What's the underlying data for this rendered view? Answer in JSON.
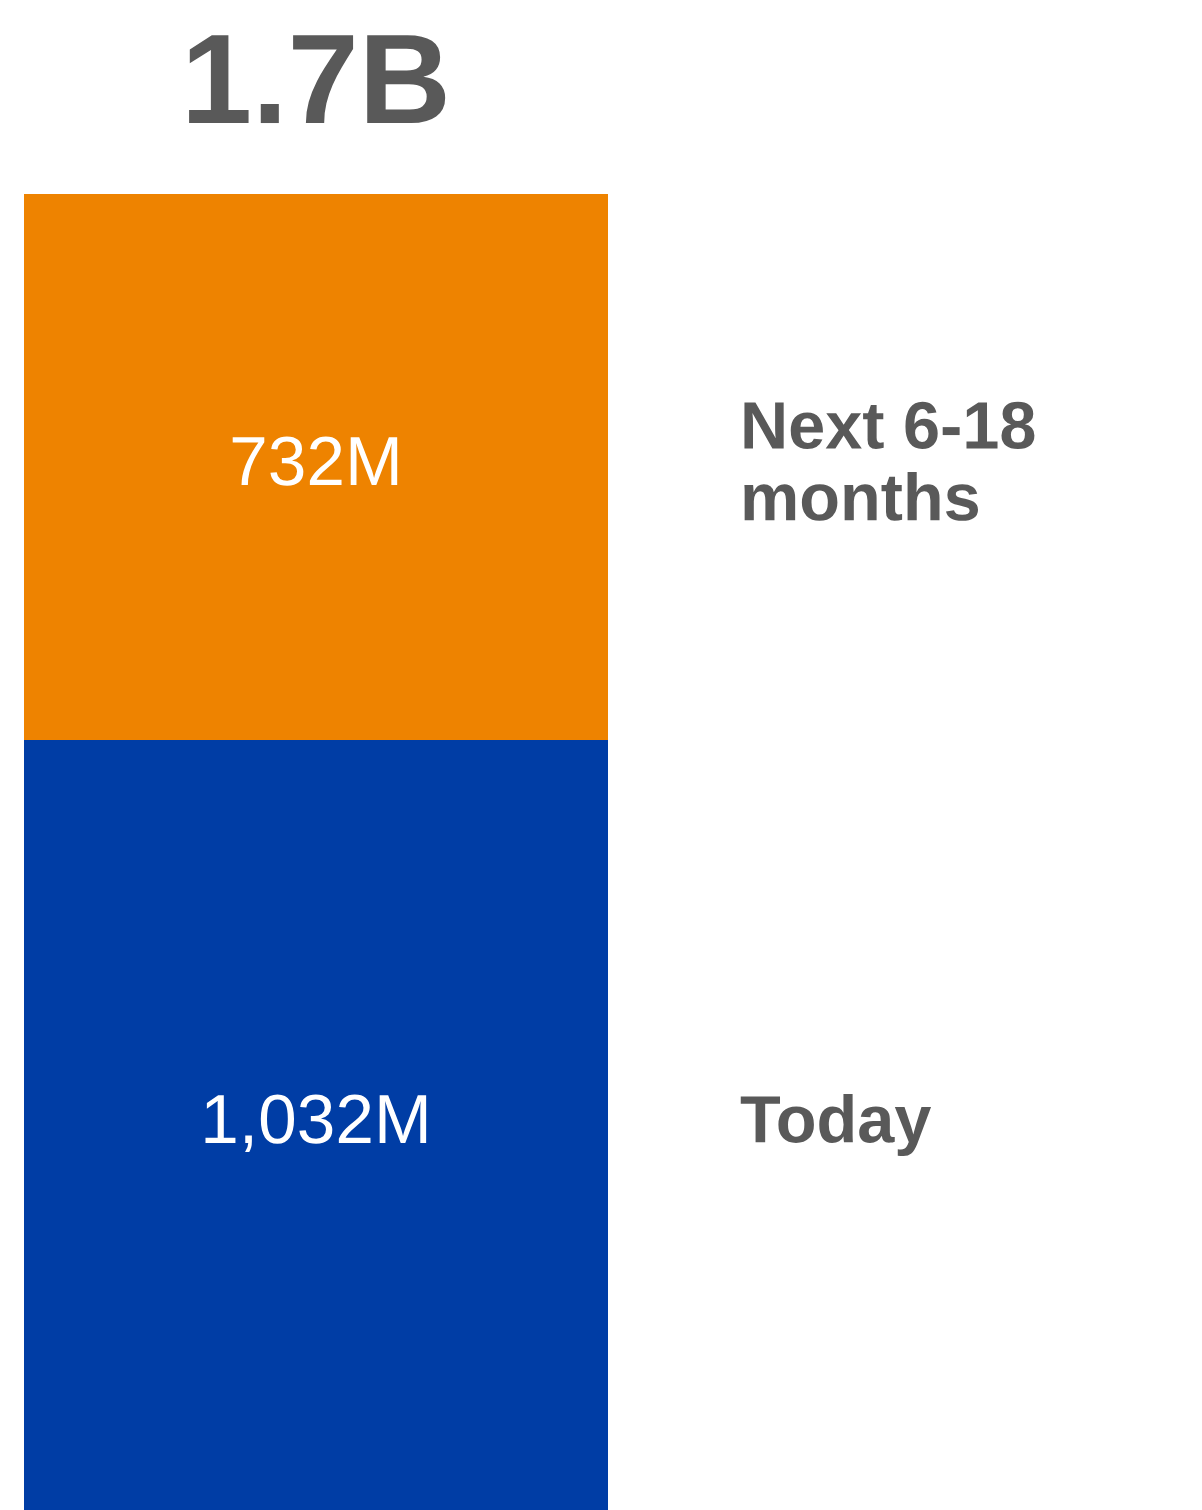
{
  "chart_data": {
    "type": "bar",
    "stacked": true,
    "categories": [
      null
    ],
    "series": [
      {
        "name": "Today",
        "color": "#003da5",
        "values": [
          1032
        ],
        "value_labels": [
          "1,032M"
        ]
      },
      {
        "name": "Next 6-18 months",
        "color": "#ee8300",
        "values": [
          732
        ],
        "value_labels": [
          "732M"
        ]
      }
    ],
    "totals": [
      "1.7B"
    ],
    "tick_labels": false
  }
}
